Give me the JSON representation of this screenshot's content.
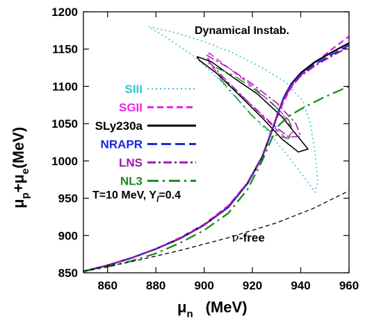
{
  "chart_data": {
    "type": "line",
    "xlabel": "μ_n  (MeV)",
    "ylabel": "μ_p+μ_e(MeV)",
    "xlim": [
      850,
      960
    ],
    "ylim": [
      850,
      1200
    ],
    "x_ticks": [
      "860",
      "880",
      "900",
      "920",
      "940",
      "960"
    ],
    "y_ticks": [
      "850",
      "900",
      "950",
      "1000",
      "1050",
      "1100",
      "1150",
      "1200"
    ],
    "grid": false,
    "legend_position": "center-left",
    "annotations": {
      "top": "Dynamical Instab.",
      "conditions": "T=10 MeV, Y_l=0.4",
      "nu_free": "ν-free"
    },
    "series": [
      {
        "name": "SIII",
        "color": "#2ec8d2",
        "dash": "dot",
        "points": [
          [
            877,
            1180
          ],
          [
            888,
            1172
          ],
          [
            900,
            1160
          ],
          [
            912,
            1145
          ],
          [
            924,
            1125
          ],
          [
            934,
            1105
          ],
          [
            941,
            1080
          ],
          [
            944,
            1050
          ],
          [
            946,
            1010
          ],
          [
            947,
            975
          ],
          [
            946,
            958
          ],
          [
            941,
            980
          ],
          [
            934,
            1010
          ],
          [
            926,
            1040
          ],
          [
            916,
            1075
          ],
          [
            906,
            1110
          ],
          [
            896,
            1140
          ],
          [
            886,
            1162
          ],
          [
            877,
            1180
          ]
        ]
      },
      {
        "name": "SGII",
        "color": "#ee20ee",
        "dash": "dash",
        "points": [
          [
            850,
            852
          ],
          [
            860,
            860
          ],
          [
            870,
            870
          ],
          [
            880,
            882
          ],
          [
            890,
            897
          ],
          [
            900,
            915
          ],
          [
            910,
            940
          ],
          [
            918,
            970
          ],
          [
            924,
            1005
          ],
          [
            928,
            1040
          ],
          [
            931,
            1065
          ],
          [
            933,
            1080
          ],
          [
            936,
            1098
          ],
          [
            940,
            1115
          ],
          [
            946,
            1132
          ],
          [
            953,
            1150
          ],
          [
            960,
            1167
          ]
        ],
        "loop": [
          [
            902,
            1145
          ],
          [
            912,
            1120
          ],
          [
            922,
            1095
          ],
          [
            932,
            1065
          ],
          [
            937,
            1040
          ],
          [
            934,
            1030
          ],
          [
            928,
            1048
          ],
          [
            918,
            1080
          ],
          [
            908,
            1110
          ],
          [
            902,
            1130
          ],
          [
            902,
            1145
          ]
        ]
      },
      {
        "name": "SLy230a",
        "color": "#000000",
        "dash": "solid",
        "points": [
          [
            850,
            852
          ],
          [
            860,
            860
          ],
          [
            870,
            870
          ],
          [
            880,
            882
          ],
          [
            890,
            896
          ],
          [
            900,
            914
          ],
          [
            910,
            938
          ],
          [
            918,
            970
          ],
          [
            924,
            1005
          ],
          [
            928,
            1040
          ],
          [
            931,
            1068
          ],
          [
            933,
            1085
          ],
          [
            936,
            1103
          ],
          [
            940,
            1118
          ],
          [
            946,
            1133
          ],
          [
            953,
            1146
          ],
          [
            960,
            1158
          ]
        ],
        "loop": [
          [
            897,
            1140
          ],
          [
            903,
            1133
          ],
          [
            912,
            1112
          ],
          [
            922,
            1090
          ],
          [
            932,
            1060
          ],
          [
            940,
            1028
          ],
          [
            943,
            1016
          ],
          [
            939,
            1012
          ],
          [
            932,
            1030
          ],
          [
            924,
            1058
          ],
          [
            914,
            1090
          ],
          [
            905,
            1118
          ],
          [
            898,
            1135
          ],
          [
            897,
            1140
          ]
        ]
      },
      {
        "name": "NRAPR",
        "color": "#1a28dc",
        "dash": "longdash",
        "points": [
          [
            850,
            852
          ],
          [
            860,
            860
          ],
          [
            870,
            870
          ],
          [
            880,
            882
          ],
          [
            890,
            896
          ],
          [
            900,
            914
          ],
          [
            910,
            938
          ],
          [
            918,
            970
          ],
          [
            924,
            1005
          ],
          [
            928,
            1040
          ],
          [
            931,
            1068
          ],
          [
            933,
            1085
          ],
          [
            936,
            1102
          ],
          [
            940,
            1116
          ],
          [
            946,
            1130
          ],
          [
            953,
            1143
          ],
          [
            960,
            1155
          ]
        ]
      },
      {
        "name": "LNS",
        "color": "#9a1aa8",
        "dash": "dashdot",
        "points": [
          [
            850,
            852
          ],
          [
            860,
            860
          ],
          [
            870,
            870
          ],
          [
            880,
            882
          ],
          [
            890,
            896
          ],
          [
            900,
            914
          ],
          [
            910,
            939
          ],
          [
            918,
            971
          ],
          [
            924,
            1006
          ],
          [
            928,
            1041
          ],
          [
            931,
            1068
          ],
          [
            933,
            1083
          ],
          [
            936,
            1100
          ],
          [
            940,
            1114
          ],
          [
            946,
            1128
          ],
          [
            953,
            1141
          ],
          [
            960,
            1153
          ]
        ],
        "loop": [
          [
            901,
            1142
          ],
          [
            910,
            1125
          ],
          [
            920,
            1103
          ],
          [
            930,
            1078
          ],
          [
            938,
            1050
          ],
          [
            940,
            1033
          ],
          [
            935,
            1032
          ],
          [
            928,
            1050
          ],
          [
            918,
            1080
          ],
          [
            908,
            1112
          ],
          [
            902,
            1133
          ],
          [
            901,
            1142
          ]
        ]
      },
      {
        "name": "NL3",
        "color": "#1f8c1f",
        "dash": "longdashdot",
        "points": [
          [
            850,
            852
          ],
          [
            860,
            858
          ],
          [
            870,
            866
          ],
          [
            880,
            876
          ],
          [
            890,
            890
          ],
          [
            900,
            907
          ],
          [
            910,
            930
          ],
          [
            918,
            962
          ],
          [
            924,
            1000
          ],
          [
            928,
            1030
          ],
          [
            931,
            1048
          ],
          [
            935,
            1060
          ],
          [
            942,
            1073
          ],
          [
            950,
            1086
          ],
          [
            960,
            1100
          ]
        ],
        "loop": [
          [
            905,
            1125
          ],
          [
            912,
            1115
          ],
          [
            920,
            1098
          ],
          [
            928,
            1078
          ],
          [
            935,
            1055
          ],
          [
            937,
            1040
          ],
          [
            935,
            1030
          ],
          [
            929,
            1035
          ],
          [
            920,
            1060
          ],
          [
            912,
            1090
          ],
          [
            906,
            1112
          ],
          [
            905,
            1125
          ]
        ]
      },
      {
        "name": "ν-free line",
        "color": "#000000",
        "dash": "shortdash",
        "points": [
          [
            850,
            852
          ],
          [
            870,
            865
          ],
          [
            890,
            880
          ],
          [
            910,
            897
          ],
          [
            930,
            917
          ],
          [
            945,
            936
          ],
          [
            960,
            960
          ]
        ]
      }
    ],
    "legend": [
      {
        "label": "SIII",
        "color": "#2ec8d2",
        "dash": "dot"
      },
      {
        "label": "SGII",
        "color": "#ee20ee",
        "dash": "dash"
      },
      {
        "label": "SLy230a",
        "color": "#000000",
        "dash": "solid"
      },
      {
        "label": "NRAPR",
        "color": "#1a28dc",
        "dash": "longdash"
      },
      {
        "label": "LNS",
        "color": "#9a1aa8",
        "dash": "dashdot"
      },
      {
        "label": "NL3",
        "color": "#1f8c1f",
        "dash": "longdashdot"
      }
    ]
  }
}
